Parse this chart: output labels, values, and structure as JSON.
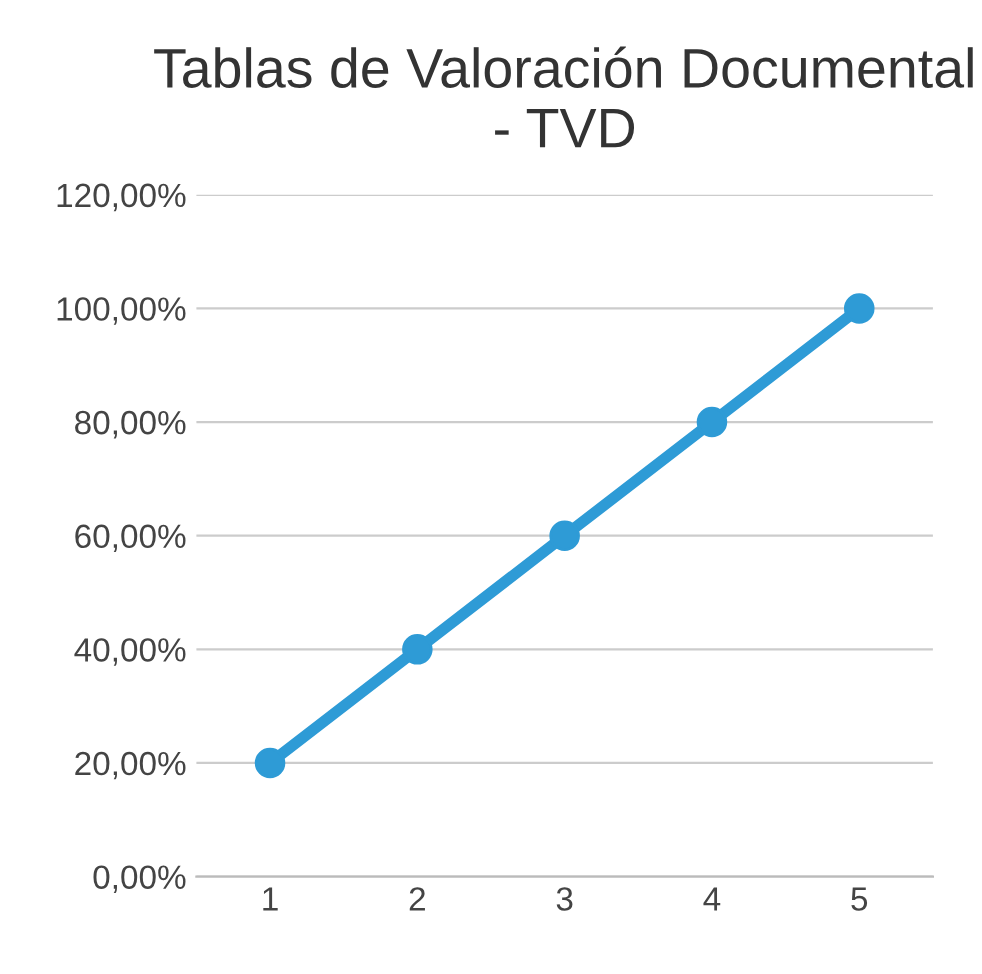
{
  "chart_data": {
    "type": "line",
    "title": "Tablas de Valoración Documental - TVD",
    "categories": [
      "1",
      "2",
      "3",
      "4",
      "5"
    ],
    "series": [
      {
        "color": "#2e9bd6",
        "values": [
          20,
          40,
          60,
          80,
          100
        ]
      }
    ],
    "ylim": [
      0,
      120
    ],
    "yticks": [
      {
        "value": 0,
        "label": "0,00%"
      },
      {
        "value": 20,
        "label": "20,00%"
      },
      {
        "value": 40,
        "label": "40,00%"
      },
      {
        "value": 60,
        "label": "60,00%"
      },
      {
        "value": 80,
        "label": "80,00%"
      },
      {
        "value": 100,
        "label": "100,00%"
      },
      {
        "value": 120,
        "label": "120,00%"
      }
    ],
    "grid": "y",
    "marker": "circle",
    "line_style": "solid",
    "legend": false
  }
}
